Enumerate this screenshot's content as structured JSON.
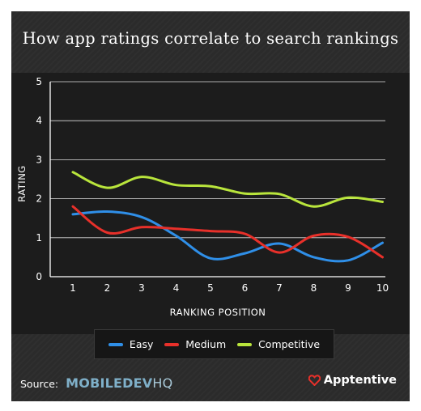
{
  "title": "How app ratings correlate to search rankings",
  "colors": {
    "easy": "#2f8fe8",
    "medium": "#e8302a",
    "competitive": "#b9e53c",
    "axis": "#ffffff",
    "background": "#2b2b2b",
    "plot_background": "#1c1c1c"
  },
  "chart_data": {
    "type": "line",
    "title": "How app ratings correlate to search rankings",
    "xlabel": "RANKING POSITION",
    "ylabel": "RATING",
    "x": [
      1,
      2,
      3,
      4,
      5,
      6,
      7,
      8,
      9,
      10
    ],
    "x_ticks": [
      "1",
      "2",
      "3",
      "4",
      "5",
      "6",
      "7",
      "8",
      "9",
      "10"
    ],
    "y_ticks": [
      "0",
      "1",
      "2",
      "3",
      "4",
      "5"
    ],
    "ylim": [
      0,
      5
    ],
    "grid": true,
    "legend_position": "bottom",
    "series": [
      {
        "name": "Easy",
        "color": "#2f8fe8",
        "values": [
          1.6,
          1.67,
          1.53,
          1.05,
          0.47,
          0.6,
          0.85,
          0.5,
          0.42,
          0.87
        ]
      },
      {
        "name": "Medium",
        "color": "#e8302a",
        "values": [
          1.8,
          1.13,
          1.27,
          1.23,
          1.17,
          1.1,
          0.62,
          1.05,
          1.02,
          0.5
        ]
      },
      {
        "name": "Competitive",
        "color": "#b9e53c",
        "values": [
          2.68,
          2.28,
          2.56,
          2.35,
          2.32,
          2.13,
          2.12,
          1.8,
          2.03,
          1.92
        ]
      }
    ]
  },
  "legend": [
    {
      "label": "Easy",
      "color": "#2f8fe8"
    },
    {
      "label": "Medium",
      "color": "#e8302a"
    },
    {
      "label": "Competitive",
      "color": "#b9e53c"
    }
  ],
  "footer": {
    "source_label": "Source:",
    "source_logo_part1": "MOBILEDEV",
    "source_logo_part2": "HQ",
    "brand_name": "Apptentive",
    "brand_icon": "heart-icon"
  }
}
